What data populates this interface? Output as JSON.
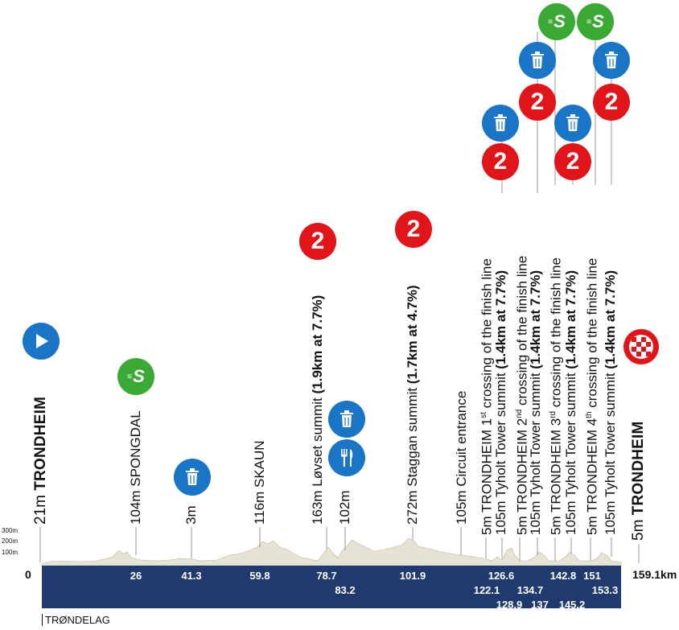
{
  "distance_axis": {
    "start_label": "0",
    "end_label": "159.1km",
    "markers": [
      {
        "km": "26",
        "row": 0
      },
      {
        "km": "41.3",
        "row": 0
      },
      {
        "km": "59.8",
        "row": 0
      },
      {
        "km": "78.7",
        "row": 0
      },
      {
        "km": "83.2",
        "row": 1
      },
      {
        "km": "101.9",
        "row": 0
      },
      {
        "km": "126.6",
        "row": 0
      },
      {
        "km": "122.1",
        "row": 1
      },
      {
        "km": "128.9",
        "row": 2
      },
      {
        "km": "134.7",
        "row": 1
      },
      {
        "km": "137",
        "row": 2
      },
      {
        "km": "142.8",
        "row": 0
      },
      {
        "km": "145.2",
        "row": 2
      },
      {
        "km": "151",
        "row": 0
      },
      {
        "km": "153.3",
        "row": 1
      }
    ]
  },
  "altitude_scale": [
    "300m",
    "200m",
    "100m"
  ],
  "region": "TRØNDELAG",
  "points": [
    {
      "alt": "21m ",
      "name": "TRONDHEIM",
      "bold": true,
      "big": true
    },
    {
      "alt": "104m ",
      "name": "SPONGDAL"
    },
    {
      "alt": "3m",
      "name": ""
    },
    {
      "alt": "116m ",
      "name": "SKAUN"
    },
    {
      "alt": "163m ",
      "name": "Løvset summit ",
      "extra": "(1.9km at 7.7%)"
    },
    {
      "alt": "102m",
      "name": ""
    },
    {
      "alt": "272m ",
      "name": "Staggan summit ",
      "extra": "(1.7km at 4.7%)"
    },
    {
      "alt": "105m ",
      "name": "Circuit entrance"
    },
    {
      "alt": "5m ",
      "name": "TRONDHEIM 1",
      "sup": "st",
      "tail": " crossing of the finish line"
    },
    {
      "alt": "105m ",
      "name": "Tyholt Tower summit ",
      "extra": "(1.4km at 7.7%)"
    },
    {
      "alt": "5m ",
      "name": "TRONDHEIM 2",
      "sup": "nd",
      "tail": " crossing of the finish line"
    },
    {
      "alt": "105m ",
      "name": "Tyholt Tower summit ",
      "extra": "(1.4km at 7.7%)"
    },
    {
      "alt": "5m ",
      "name": "TRONDHEIM 3",
      "sup": "rd",
      "tail": " crossing of the finish line"
    },
    {
      "alt": "105m ",
      "name": "Tyholt Tower summit ",
      "extra": "(1.4km at 7.7%)"
    },
    {
      "alt": "5m ",
      "name": "TRONDHEIM 4",
      "sup": "th",
      "tail": " crossing of the finish line"
    },
    {
      "alt": "105m ",
      "name": "Tyholt Tower summit ",
      "extra": "(1.4km at 7.7%)"
    },
    {
      "alt": "5m ",
      "name": "TRONDHEIM",
      "bold": true,
      "big": true
    }
  ],
  "icons": {
    "start": "start-icon",
    "finish": "finish-flag-icon",
    "sprint_letter": "S",
    "kom_number": "2",
    "feed": "fork-knife-icon",
    "waste": "waste-bin-icon"
  },
  "colors": {
    "kom_red": "#e01419",
    "waste_blue": "#1a75c6",
    "sprint_green": "#3aaa35",
    "band_navy": "#1f3a6e",
    "profile_fill": "#e7e3d4"
  }
}
